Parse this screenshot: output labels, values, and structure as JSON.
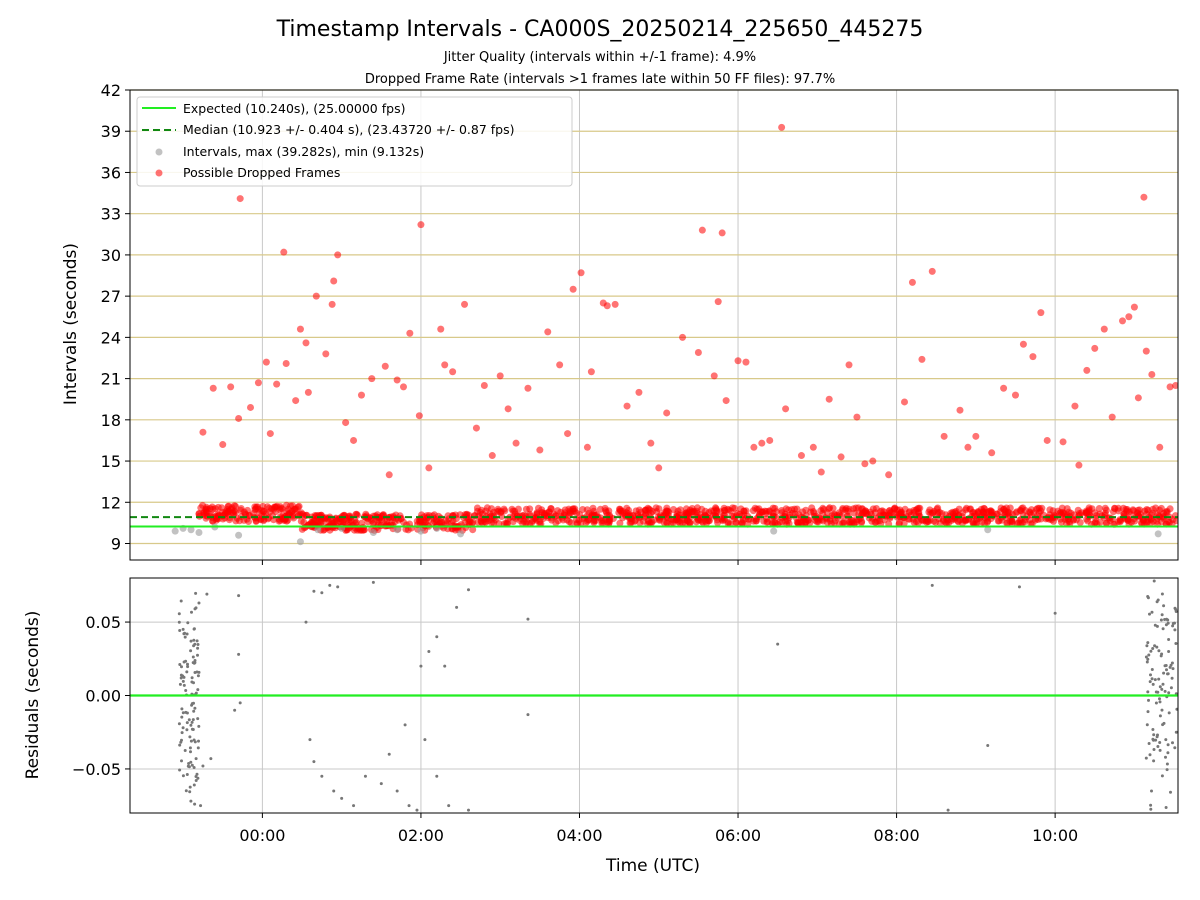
{
  "chart_data": [
    {
      "type": "scatter",
      "title": "Timestamp Intervals - CA000S_20250214_225650_445275",
      "subtitle_lines": [
        "Jitter Quality (intervals within +/-1 frame): 4.9%",
        "Dropped Frame Rate (intervals >1 frames late within 50 FF files): 97.7%"
      ],
      "xlabel": "",
      "ylabel": "Intervals (seconds)",
      "ylim": [
        7.8,
        42
      ],
      "yticks": [
        "9",
        "12",
        "15",
        "18",
        "21",
        "24",
        "27",
        "30",
        "33",
        "36",
        "39",
        "42"
      ],
      "ytick_values": [
        9,
        12,
        15,
        18,
        21,
        24,
        27,
        30,
        33,
        36,
        39,
        42
      ],
      "xlim_hours": [
        -1.67,
        11.55
      ],
      "xtick_values_hours": [
        0,
        2,
        4,
        6,
        8,
        10
      ],
      "grid": {
        "horizontal": true,
        "horizontal_color": "#d8c98a",
        "vertical": true
      },
      "legend_position": "top-left",
      "legend": [
        "Expected (10.240s), (25.00000 fps)",
        "Median (10.923 +/- 0.404 s), (23.43720 +/- 0.87 fps)",
        "Intervals, max (39.282s), min (9.132s)",
        "Possible Dropped Frames"
      ],
      "series": [
        {
          "kind": "line",
          "value": 10.24,
          "color": "#22ee22",
          "style": "solid"
        },
        {
          "kind": "line",
          "value": 10.923,
          "color": "#118811",
          "style": "dashed"
        },
        {
          "kind": "points",
          "color": "#999999",
          "points": [
            [
              -1.1,
              9.9
            ],
            [
              -1.0,
              10.1
            ],
            [
              -0.9,
              10.0
            ],
            [
              -0.8,
              9.8
            ],
            [
              -0.6,
              10.2
            ],
            [
              -0.3,
              9.6
            ],
            [
              0.48,
              9.132
            ],
            [
              0.7,
              10.0
            ],
            [
              1.0,
              10.1
            ],
            [
              1.4,
              9.8
            ],
            [
              1.7,
              10.0
            ],
            [
              2.0,
              9.9
            ],
            [
              2.2,
              10.1
            ],
            [
              2.5,
              9.7
            ],
            [
              6.45,
              9.9
            ],
            [
              9.15,
              10.0
            ],
            [
              11.3,
              9.7
            ]
          ]
        },
        {
          "kind": "points",
          "color": "#ff0000",
          "points": [
            [
              -0.75,
              17.1
            ],
            [
              -0.62,
              20.3
            ],
            [
              -0.5,
              16.2
            ],
            [
              -0.4,
              20.4
            ],
            [
              -0.3,
              18.1
            ],
            [
              -0.28,
              34.1
            ],
            [
              -0.15,
              18.9
            ],
            [
              -0.05,
              20.7
            ],
            [
              0.05,
              22.2
            ],
            [
              0.1,
              17.0
            ],
            [
              0.18,
              20.6
            ],
            [
              0.27,
              30.2
            ],
            [
              0.3,
              22.1
            ],
            [
              0.42,
              19.4
            ],
            [
              0.48,
              24.6
            ],
            [
              0.55,
              23.6
            ],
            [
              0.68,
              27.0
            ],
            [
              0.8,
              22.8
            ],
            [
              0.88,
              26.4
            ],
            [
              0.9,
              28.1
            ],
            [
              0.95,
              30.0
            ],
            [
              1.05,
              17.8
            ],
            [
              1.15,
              16.5
            ],
            [
              1.25,
              19.8
            ],
            [
              1.38,
              21.0
            ],
            [
              1.55,
              21.9
            ],
            [
              1.7,
              20.9
            ],
            [
              1.78,
              20.4
            ],
            [
              1.86,
              24.3
            ],
            [
              1.98,
              18.3
            ],
            [
              2.0,
              32.2
            ],
            [
              2.1,
              14.5
            ],
            [
              2.25,
              24.6
            ],
            [
              2.3,
              22.0
            ],
            [
              2.4,
              21.5
            ],
            [
              2.55,
              26.4
            ],
            [
              2.7,
              17.4
            ],
            [
              2.8,
              20.5
            ],
            [
              3.0,
              21.2
            ],
            [
              3.1,
              18.8
            ],
            [
              3.2,
              16.3
            ],
            [
              3.35,
              20.3
            ],
            [
              3.5,
              15.8
            ],
            [
              3.6,
              24.4
            ],
            [
              3.75,
              22.0
            ],
            [
              3.85,
              17.0
            ],
            [
              4.02,
              28.7
            ],
            [
              3.92,
              27.5
            ],
            [
              4.15,
              21.5
            ],
            [
              4.3,
              26.5
            ],
            [
              4.35,
              26.3
            ],
            [
              4.45,
              26.4
            ],
            [
              4.6,
              19.0
            ],
            [
              4.75,
              20.0
            ],
            [
              4.9,
              16.3
            ],
            [
              5.1,
              18.5
            ],
            [
              5.3,
              24.0
            ],
            [
              5.5,
              22.9
            ],
            [
              5.55,
              31.8
            ],
            [
              5.7,
              21.2
            ],
            [
              5.75,
              26.6
            ],
            [
              5.8,
              31.6
            ],
            [
              5.85,
              19.4
            ],
            [
              6.0,
              22.3
            ],
            [
              6.1,
              22.2
            ],
            [
              6.2,
              16.0
            ],
            [
              6.4,
              16.5
            ],
            [
              6.55,
              39.282
            ],
            [
              6.6,
              18.8
            ],
            [
              6.8,
              15.4
            ],
            [
              6.95,
              16.0
            ],
            [
              7.05,
              14.2
            ],
            [
              7.15,
              19.5
            ],
            [
              7.3,
              15.3
            ],
            [
              7.4,
              22.0
            ],
            [
              7.5,
              18.2
            ],
            [
              7.7,
              15.0
            ],
            [
              7.9,
              14.0
            ],
            [
              8.1,
              19.3
            ],
            [
              8.2,
              28.0
            ],
            [
              8.32,
              22.4
            ],
            [
              8.45,
              28.8
            ],
            [
              8.6,
              16.8
            ],
            [
              8.8,
              18.7
            ],
            [
              9.0,
              16.8
            ],
            [
              9.2,
              15.6
            ],
            [
              9.35,
              20.3
            ],
            [
              9.5,
              19.8
            ],
            [
              9.6,
              23.5
            ],
            [
              9.72,
              22.6
            ],
            [
              9.82,
              25.8
            ],
            [
              9.9,
              16.5
            ],
            [
              10.1,
              16.4
            ],
            [
              10.25,
              19.0
            ],
            [
              10.4,
              21.6
            ],
            [
              10.5,
              23.2
            ],
            [
              10.62,
              24.6
            ],
            [
              10.72,
              18.2
            ],
            [
              10.85,
              25.2
            ],
            [
              10.93,
              25.5
            ],
            [
              11.0,
              26.2
            ],
            [
              11.12,
              34.2
            ],
            [
              11.15,
              23.0
            ],
            [
              11.22,
              21.3
            ],
            [
              11.32,
              16.0
            ],
            [
              11.45,
              20.4
            ],
            [
              11.52,
              20.5
            ],
            [
              0.58,
              20.0
            ],
            [
              1.6,
              14.0
            ],
            [
              2.9,
              15.4
            ],
            [
              4.1,
              16.0
            ],
            [
              5.0,
              14.5
            ],
            [
              6.3,
              16.3
            ],
            [
              7.6,
              14.8
            ],
            [
              8.9,
              16.0
            ],
            [
              10.3,
              14.7
            ],
            [
              11.05,
              19.6
            ]
          ]
        }
      ],
      "band": {
        "note": "dense cluster of intervals around 10.2-11.8 s across the whole time range"
      }
    },
    {
      "type": "scatter",
      "xlabel": "Time (UTC)",
      "ylabel": "Residuals (seconds)",
      "ylim": [
        -0.08,
        0.08
      ],
      "yticks": [
        "−0.05",
        "0.00",
        "0.05"
      ],
      "ytick_values": [
        -0.05,
        0.0,
        0.05
      ],
      "xticks": [
        "00:00",
        "02:00",
        "04:00",
        "06:00",
        "08:00",
        "10:00"
      ],
      "xtick_values_hours": [
        0,
        2,
        4,
        6,
        8,
        10
      ],
      "grid": {
        "horizontal": true,
        "vertical": true
      },
      "series": [
        {
          "kind": "line",
          "value": 0.0,
          "color": "#22ee22",
          "style": "solid"
        },
        {
          "kind": "points",
          "color": "#777777",
          "points": [
            [
              -1.0,
              0.045
            ],
            [
              -0.9,
              0.037
            ],
            [
              -0.85,
              0.059
            ],
            [
              -0.8,
              0.063
            ],
            [
              -0.7,
              0.069
            ],
            [
              -0.3,
              0.068
            ],
            [
              -0.3,
              0.028
            ],
            [
              -0.35,
              -0.01
            ],
            [
              -0.28,
              -0.005
            ],
            [
              -0.75,
              -0.048
            ],
            [
              -0.65,
              -0.043
            ],
            [
              -0.78,
              -0.075
            ],
            [
              0.55,
              0.05
            ],
            [
              0.65,
              0.071
            ],
            [
              0.75,
              0.07
            ],
            [
              0.85,
              0.075
            ],
            [
              0.95,
              0.074
            ],
            [
              1.4,
              0.077
            ],
            [
              0.6,
              -0.03
            ],
            [
              0.65,
              -0.045
            ],
            [
              0.75,
              -0.055
            ],
            [
              0.9,
              -0.065
            ],
            [
              1.0,
              -0.07
            ],
            [
              1.15,
              -0.075
            ],
            [
              1.3,
              -0.055
            ],
            [
              1.5,
              -0.06
            ],
            [
              1.7,
              -0.065
            ],
            [
              1.85,
              -0.075
            ],
            [
              1.95,
              -0.078
            ],
            [
              1.6,
              -0.04
            ],
            [
              1.8,
              -0.02
            ],
            [
              2.05,
              -0.03
            ],
            [
              2.2,
              -0.055
            ],
            [
              2.35,
              -0.075
            ],
            [
              2.6,
              -0.078
            ],
            [
              2.6,
              0.072
            ],
            [
              2.45,
              0.06
            ],
            [
              2.3,
              0.02
            ],
            [
              2.2,
              0.04
            ],
            [
              2.1,
              0.03
            ],
            [
              2.0,
              0.02
            ],
            [
              3.35,
              0.052
            ],
            [
              3.35,
              -0.013
            ],
            [
              6.5,
              0.035
            ],
            [
              8.45,
              0.075
            ],
            [
              8.65,
              -0.078
            ],
            [
              9.15,
              -0.034
            ],
            [
              9.55,
              0.074
            ],
            [
              10.0,
              0.056
            ],
            [
              11.25,
              0.078
            ],
            [
              11.3,
              0.065
            ],
            [
              11.35,
              0.055
            ]
          ]
        }
      ],
      "clusters_hours": [
        [
          -1.05,
          -0.8
        ],
        [
          11.15,
          11.55
        ]
      ]
    }
  ]
}
